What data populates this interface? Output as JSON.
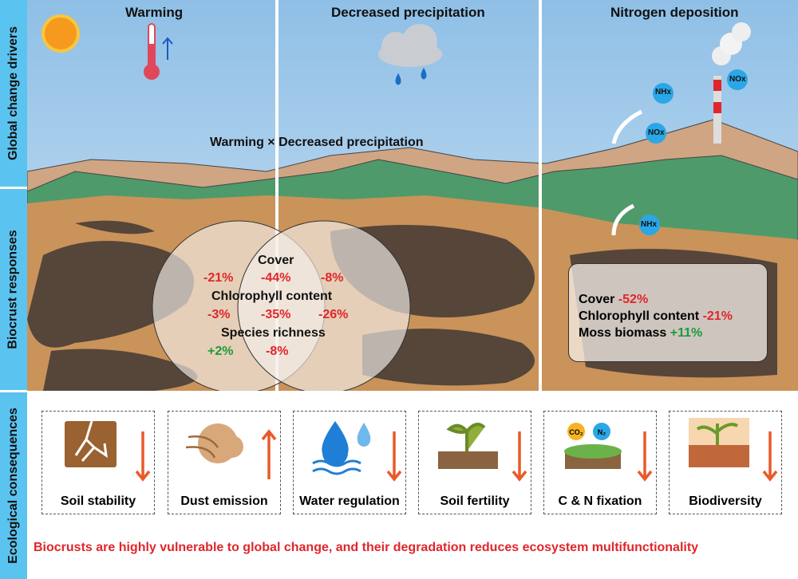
{
  "sidebar": {
    "drivers": "Global change drivers",
    "responses": "Biocrust responses",
    "consequences": "Ecological consequences"
  },
  "drivers": {
    "warming": "Warming",
    "precip": "Decreased precipitation",
    "nitrogen": "Nitrogen deposition",
    "interaction": "Warming × Decreased precipitation"
  },
  "molecules": {
    "nhx1": "NHx",
    "nox1": "NOx",
    "nox2": "NOx",
    "nhx2": "NHx"
  },
  "venn": {
    "cover_label": "Cover",
    "cover_w": "-21%",
    "cover_wp": "-44%",
    "cover_p": "-8%",
    "chl_label": "Chlorophyll content",
    "chl_w": "-3%",
    "chl_wp": "-35%",
    "chl_p": "-26%",
    "sr_label": "Species richness",
    "sr_w": "+2%",
    "sr_wp": "-8%"
  },
  "nitrogen_box": {
    "cover_label": "Cover",
    "cover_val": "-52%",
    "chl_label": "Chlorophyll content",
    "chl_val": "-21%",
    "moss_label": "Moss biomass",
    "moss_val": "+11%"
  },
  "consequences": [
    {
      "label": "Soil stability",
      "direction": "down",
      "icon": "cracked-soil-icon"
    },
    {
      "label": "Dust emission",
      "direction": "up",
      "icon": "dust-cloud-icon"
    },
    {
      "label": "Water regulation",
      "direction": "down",
      "icon": "water-drops-icon"
    },
    {
      "label": "Soil fertility",
      "direction": "down",
      "icon": "seedling-soil-icon"
    },
    {
      "label": "C & N fixation",
      "direction": "down",
      "icon": "co2-n2-moss-icon"
    },
    {
      "label": "Biodiversity",
      "direction": "down",
      "icon": "plant-soil-fauna-icon"
    }
  ],
  "gas_labels": {
    "co2": "CO₂",
    "n2": "N₂"
  },
  "conclusion": "Biocrusts are highly vulnerable to global change, and their degradation reduces ecosystem multifunctionality",
  "colors": {
    "sidebar": "#5bc3ef",
    "negative": "#e0262b",
    "positive": "#1f9a3a",
    "arrow": "#e85a2a",
    "sky": "#a9d0ee",
    "soil": "#c9935a",
    "crust": "#4a3d36"
  }
}
